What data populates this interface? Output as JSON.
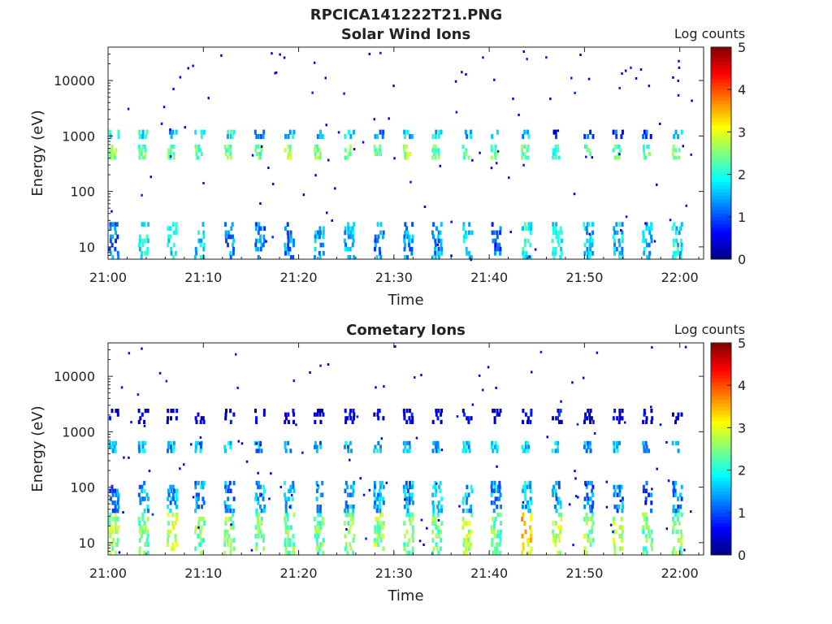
{
  "figure": {
    "main_title": "RPCICA141222T21.PNG"
  },
  "colorscale": {
    "stops": [
      "#00007f",
      "#0000ff",
      "#007fff",
      "#00ffff",
      "#7fff7f",
      "#ffff00",
      "#ff7f00",
      "#ff0000",
      "#7f0000"
    ]
  },
  "chart_data": [
    {
      "type": "heatmap",
      "title": "Solar Wind Ions",
      "xlabel": "Time",
      "ylabel": "Energy (eV)",
      "xticks": [
        "21:00",
        "21:10",
        "21:20",
        "21:30",
        "21:40",
        "21:50",
        "22:00"
      ],
      "xlim_minutes": [
        0,
        62.5
      ],
      "yticks": [
        10,
        100,
        1000,
        10000
      ],
      "ytick_labels": [
        "10",
        "100",
        "1000",
        "10000"
      ],
      "ylim": [
        6,
        40000
      ],
      "yscale": "log",
      "colorbar": {
        "label": "Log counts",
        "min": 0,
        "max": 5,
        "ticks": [
          "0",
          "1",
          "2",
          "3",
          "4",
          "5"
        ]
      },
      "sweep_starts_minutes": [
        0.1,
        3.2,
        6.2,
        9.1,
        12.2,
        15.4,
        18.5,
        21.6,
        24.8,
        27.9,
        31.0,
        34.0,
        37.2,
        40.2,
        43.4,
        46.6,
        49.9,
        53.0,
        56.1,
        59.2
      ],
      "bands": [
        {
          "name": "low-energy",
          "e_min": 6,
          "e_max": 28,
          "log_counts": [
            1.2,
            1.8,
            1.8,
            1.7,
            1.4,
            1.2,
            1.3,
            1.5,
            1.6,
            1.3,
            1.4,
            1.4,
            1.8,
            1.0,
            2.0,
            1.8,
            1.6,
            1.6,
            1.5,
            1.8
          ]
        },
        {
          "name": "main-beam",
          "e_min": 380,
          "e_max": 700,
          "log_counts": [
            2.6,
            2.4,
            2.3,
            2.3,
            2.4,
            2.3,
            2.5,
            2.4,
            2.4,
            2.4,
            2.6,
            2.4,
            2.3,
            2.4,
            2.4,
            2.2,
            2.2,
            2.4,
            2.4,
            2.4
          ]
        },
        {
          "name": "secondary-beam",
          "e_min": 900,
          "e_max": 1300,
          "log_counts": [
            1.9,
            1.9,
            1.6,
            1.9,
            1.9,
            1.4,
            1.6,
            1.5,
            1.5,
            1.4,
            1.6,
            1.7,
            1.5,
            1.4,
            1.6,
            0.6,
            0.9,
            0.9,
            0.9,
            1.5
          ]
        }
      ]
    },
    {
      "type": "heatmap",
      "title": "Cometary Ions",
      "xlabel": "Time",
      "ylabel": "Energy (eV)",
      "xticks": [
        "21:00",
        "21:10",
        "21:20",
        "21:30",
        "21:40",
        "21:50",
        "22:00"
      ],
      "xlim_minutes": [
        0,
        62.5
      ],
      "yticks": [
        10,
        100,
        1000,
        10000
      ],
      "ytick_labels": [
        "10",
        "100",
        "1000",
        "10000"
      ],
      "ylim": [
        6,
        40000
      ],
      "yscale": "log",
      "colorbar": {
        "label": "Log counts",
        "min": 0,
        "max": 5,
        "ticks": [
          "0",
          "1",
          "2",
          "3",
          "4",
          "5"
        ]
      },
      "sweep_starts_minutes": [
        0.1,
        3.2,
        6.2,
        9.1,
        12.2,
        15.4,
        18.5,
        21.6,
        24.8,
        27.9,
        31.0,
        34.0,
        37.2,
        40.2,
        43.4,
        46.6,
        49.9,
        53.0,
        56.1,
        59.2
      ],
      "bands": [
        {
          "name": "low-energy",
          "e_min": 6,
          "e_max": 35,
          "log_counts": [
            2.6,
            2.4,
            2.8,
            2.4,
            2.5,
            2.6,
            2.4,
            2.4,
            2.5,
            2.6,
            2.4,
            2.4,
            2.8,
            2.4,
            3.3,
            2.7,
            2.6,
            2.8,
            2.4,
            2.5
          ]
        },
        {
          "name": "mid-energy",
          "e_min": 35,
          "e_max": 130,
          "log_counts": [
            1.3,
            1.5,
            1.4,
            1.4,
            1.3,
            1.5,
            1.6,
            1.4,
            1.4,
            1.5,
            1.4,
            1.6,
            1.5,
            1.4,
            1.6,
            1.4,
            1.2,
            1.3,
            1.1,
            1.3
          ]
        },
        {
          "name": "beam",
          "e_min": 420,
          "e_max": 680,
          "log_counts": [
            1.6,
            1.6,
            1.5,
            1.4,
            1.6,
            1.4,
            1.5,
            1.3,
            1.5,
            1.6,
            1.5,
            1.6,
            1.6,
            1.6,
            1.6,
            1.6,
            1.4,
            1.6,
            1.5,
            1.6
          ]
        },
        {
          "name": "upper",
          "e_min": 1400,
          "e_max": 2600,
          "log_counts": [
            0.4,
            0.3,
            0.3,
            0.3,
            0.4,
            0.3,
            0.4,
            0.3,
            0.4,
            0.3,
            0.5,
            0.4,
            0.4,
            0.3,
            0.3,
            0.5,
            0.4,
            0.4,
            0.5,
            0.4
          ]
        }
      ]
    }
  ]
}
